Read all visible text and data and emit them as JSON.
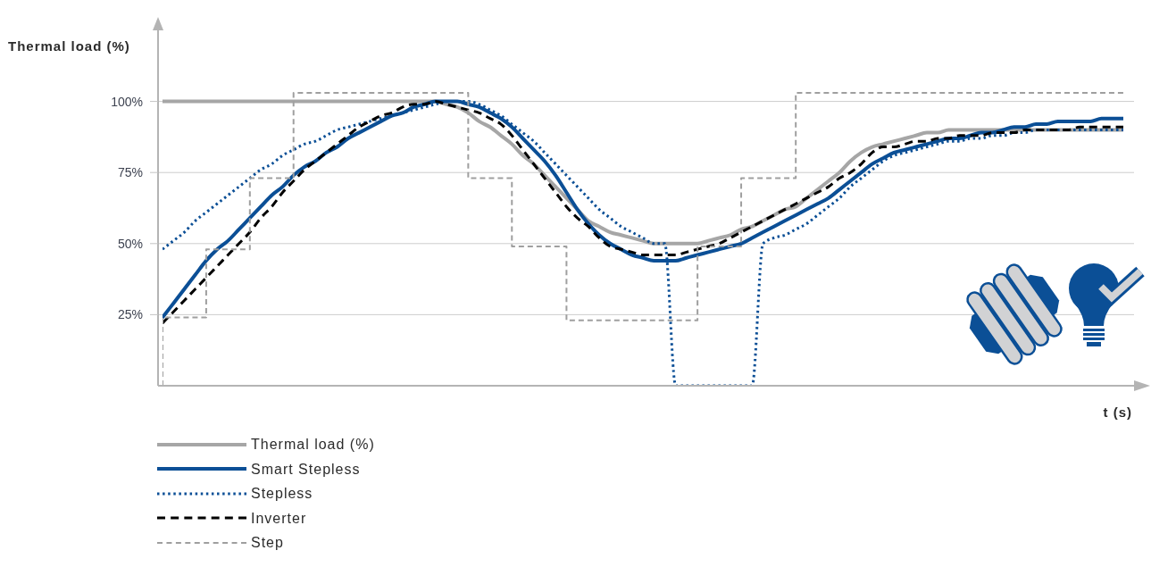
{
  "chart_data": {
    "type": "line",
    "xlabel": "t (s)",
    "ylabel": "Thermal load (%)",
    "categories": [
      null,
      null,
      null,
      null,
      null,
      null,
      null,
      null,
      null,
      null,
      null,
      null,
      null,
      null,
      null,
      null,
      null,
      null,
      null,
      null,
      null,
      null,
      null,
      null,
      null,
      null,
      null,
      null,
      null,
      null,
      null,
      null,
      null,
      null,
      null,
      null,
      null,
      null,
      null,
      null,
      null,
      null,
      null,
      null,
      null,
      null,
      null,
      null,
      null,
      null,
      null,
      null,
      null,
      null,
      null,
      null,
      null,
      null,
      null,
      null,
      null,
      null,
      null,
      null,
      null,
      null,
      null,
      null,
      null,
      null,
      null,
      null,
      null,
      null,
      null,
      null,
      null,
      null,
      null,
      null,
      null,
      null,
      null,
      null,
      null,
      null,
      null,
      null,
      null
    ],
    "series": [
      {
        "name": "Thermal load (%)",
        "color": "#a6a6a6",
        "line_style": "solid",
        "values": [
          100,
          100,
          100,
          100,
          100,
          100,
          100,
          100,
          100,
          100,
          100,
          100,
          100,
          100,
          100,
          100,
          100,
          100,
          100,
          100,
          100,
          100,
          100,
          100,
          100,
          100,
          99,
          98,
          96,
          93,
          91,
          88,
          85,
          81,
          78,
          74,
          70,
          66,
          62,
          58,
          56,
          54,
          53,
          52,
          51,
          50,
          50,
          50,
          50,
          50,
          51,
          52,
          53,
          55,
          56,
          58,
          60,
          62,
          63,
          66,
          69,
          72,
          75,
          79,
          82,
          84,
          85,
          86,
          87,
          88,
          89,
          89,
          90,
          90,
          90,
          90,
          90,
          90,
          90,
          90,
          90,
          90,
          90,
          90,
          90,
          90,
          90,
          90,
          90
        ]
      },
      {
        "name": "Smart Stepless",
        "color": "#0b4f96",
        "line_style": "solid",
        "values": [
          24,
          29,
          34,
          39,
          44,
          48,
          51,
          55,
          59,
          63,
          67,
          70,
          74,
          77,
          79,
          82,
          84,
          87,
          89,
          91,
          93,
          95,
          96,
          98,
          99,
          100,
          100,
          100,
          99,
          98,
          96,
          94,
          91,
          87,
          83,
          79,
          74,
          68,
          62,
          57,
          53,
          50,
          48,
          46,
          45,
          44,
          44,
          44,
          45,
          46,
          47,
          48,
          49,
          50,
          52,
          54,
          56,
          58,
          60,
          62,
          64,
          66,
          69,
          72,
          75,
          78,
          80,
          82,
          83,
          84,
          85,
          86,
          87,
          87,
          88,
          89,
          89,
          90,
          91,
          91,
          92,
          92,
          93,
          93,
          93,
          93,
          94,
          94,
          94
        ]
      },
      {
        "name": "Stepless",
        "color": "#0b4f96",
        "line_style": "dotted",
        "values": [
          48,
          51,
          54,
          58,
          61,
          64,
          67,
          70,
          73,
          76,
          78,
          81,
          83,
          85,
          86,
          88,
          90,
          91,
          92,
          93,
          94,
          95,
          96,
          97,
          98,
          99,
          100,
          100,
          100,
          99,
          97,
          95,
          92,
          89,
          86,
          82,
          78,
          74,
          70,
          66,
          62,
          59,
          56,
          54,
          52,
          50,
          50,
          0,
          0,
          0,
          0,
          0,
          0,
          0,
          0,
          50,
          52,
          53,
          55,
          57,
          60,
          63,
          66,
          70,
          73,
          76,
          79,
          81,
          82,
          83,
          84,
          85,
          86,
          86,
          87,
          87,
          88,
          88,
          89,
          89,
          90,
          90,
          90,
          90,
          90,
          90,
          90,
          90,
          90
        ]
      },
      {
        "name": "Inverter",
        "color": "#000000",
        "line_style": "dashed",
        "values": [
          22,
          26,
          30,
          34,
          38,
          42,
          46,
          50,
          54,
          59,
          63,
          68,
          72,
          76,
          79,
          82,
          85,
          88,
          91,
          93,
          95,
          96,
          98,
          99,
          99,
          100,
          99,
          98,
          97,
          96,
          94,
          92,
          88,
          83,
          78,
          73,
          68,
          63,
          59,
          56,
          52,
          49,
          48,
          47,
          46,
          46,
          46,
          46,
          47,
          48,
          49,
          50,
          52,
          54,
          56,
          58,
          60,
          62,
          64,
          66,
          68,
          70,
          73,
          75,
          78,
          82,
          84,
          84,
          85,
          86,
          86,
          87,
          87,
          88,
          88,
          88,
          89,
          89,
          89,
          90,
          90,
          90,
          90,
          90,
          91,
          91,
          91,
          91,
          91
        ]
      },
      {
        "name": "Step",
        "type": "step",
        "color": "#9f9f9f",
        "line_style": "dashed",
        "values": [
          0,
          24,
          24,
          24,
          24,
          48,
          48,
          48,
          48,
          73,
          73,
          73,
          73,
          103,
          103,
          103,
          103,
          103,
          103,
          103,
          103,
          103,
          103,
          103,
          103,
          103,
          103,
          103,
          103,
          73,
          73,
          73,
          73,
          49,
          49,
          49,
          49,
          49,
          23,
          23,
          23,
          23,
          23,
          23,
          23,
          23,
          23,
          23,
          23,
          23,
          49,
          49,
          49,
          49,
          73,
          73,
          73,
          73,
          73,
          103,
          103,
          103,
          103,
          103,
          103,
          103,
          103,
          103,
          103,
          103,
          103,
          103,
          103,
          103,
          103,
          103,
          103,
          103,
          103,
          103,
          103,
          103,
          103,
          103,
          103,
          103,
          103,
          103,
          103
        ]
      }
    ],
    "ylim": [
      0,
      125
    ],
    "yticks": [
      {
        "value": 25,
        "label": "25%"
      },
      {
        "value": 50,
        "label": "50%"
      },
      {
        "value": 75,
        "label": "75%"
      },
      {
        "value": 100,
        "label": "100%"
      }
    ],
    "grid": "y",
    "legend": "bottom left",
    "tick_labels": "y"
  }
}
